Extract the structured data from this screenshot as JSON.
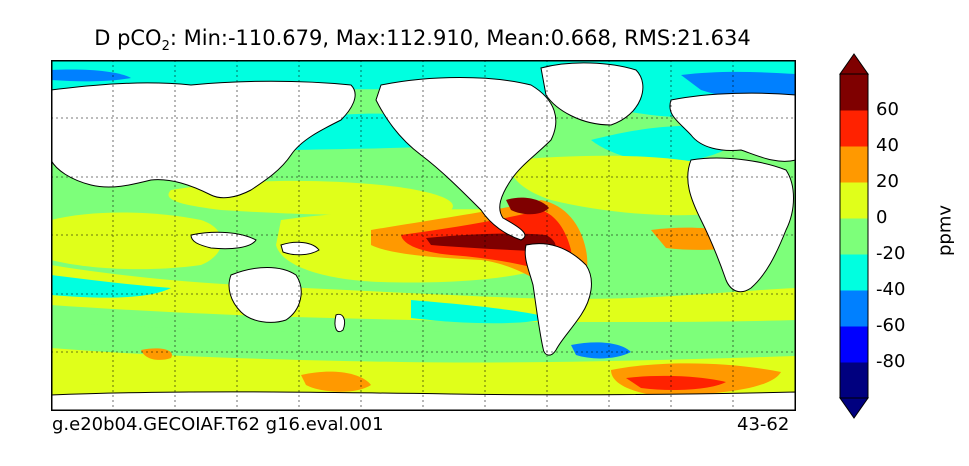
{
  "title": {
    "prefix": "D pCO",
    "subscript": "2",
    "stats": ": Min:-110.679, Max:112.910, Mean:0.668, RMS:21.634"
  },
  "footer": {
    "case_name": "g.e20b04.GECOIAF.T62 g16.eval.001",
    "years": "43-62"
  },
  "colorbar": {
    "unit_label": "ppmv",
    "tick_labels": [
      "60",
      "40",
      "20",
      "0",
      "-20",
      "-40",
      "-60",
      "-80"
    ],
    "levels": [
      -100,
      -80,
      -60,
      -40,
      -20,
      0,
      20,
      40,
      60,
      80
    ],
    "colors": [
      "#00007f",
      "#0000ff",
      "#0080ff",
      "#00ffe0",
      "#7dff7a",
      "#e0ff1a",
      "#ff9900",
      "#ff2200",
      "#7f0000"
    ],
    "extend": "both"
  },
  "map": {
    "projection": "global lat-lon, Pacific-centred",
    "field": "pCO2 difference",
    "land_color": "#ffffff",
    "grid": "dotted"
  }
}
